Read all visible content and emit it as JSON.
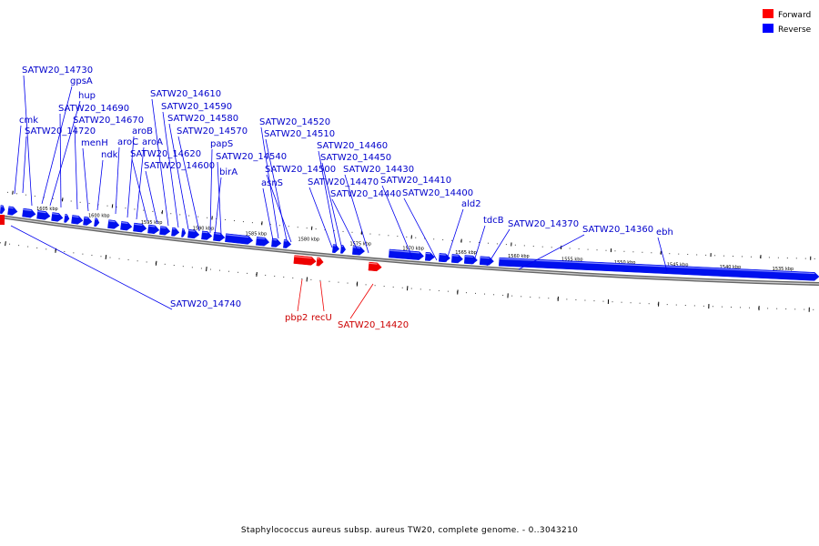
{
  "legend": {
    "forward": {
      "label": "Forward",
      "color": "#ff0000"
    },
    "reverse": {
      "label": "Reverse",
      "color": "#0000ff"
    }
  },
  "caption": "Staphylococcus aureus subsp. aureus TW20, complete genome. - 0..3043210",
  "ticks": [
    "1605 kbp",
    "1600 kbp",
    "1595 kbp",
    "1590 kbp",
    "1585 kbp",
    "1580 kbp",
    "1575 kbp",
    "1570 kbp",
    "1565 kbp",
    "1560 kbp",
    "1555 kbp",
    "1550 kbp",
    "1545 kbp",
    "1540 kbp",
    "1535 kbp"
  ],
  "reverse_labels": [
    "SATW20_14730",
    "gpsA",
    "hup",
    "SATW20_14690",
    "cmk",
    "SATW20_14670",
    "SATW20_14720",
    "menH",
    "ndk",
    "SATW20_14610",
    "SATW20_14590",
    "SATW20_14580",
    "aroB",
    "SATW20_14570",
    "aroC",
    "aroA",
    "papS",
    "SATW20_14620",
    "SATW20_14600",
    "SATW20_14540",
    "birA",
    "SATW20_14520",
    "SATW20_14510",
    "SATW20_14460",
    "SATW20_14450",
    "SATW20_14500",
    "asnS",
    "SATW20_14430",
    "SATW20_14410",
    "SATW20_14470",
    "SATW20_14440",
    "SATW20_14400",
    "ald2",
    "tdcB",
    "SATW20_14370",
    "SATW20_14360",
    "ebh",
    "SATW20_14740"
  ],
  "forward_labels": [
    "pbp2",
    "recU",
    "SATW20_14420"
  ]
}
